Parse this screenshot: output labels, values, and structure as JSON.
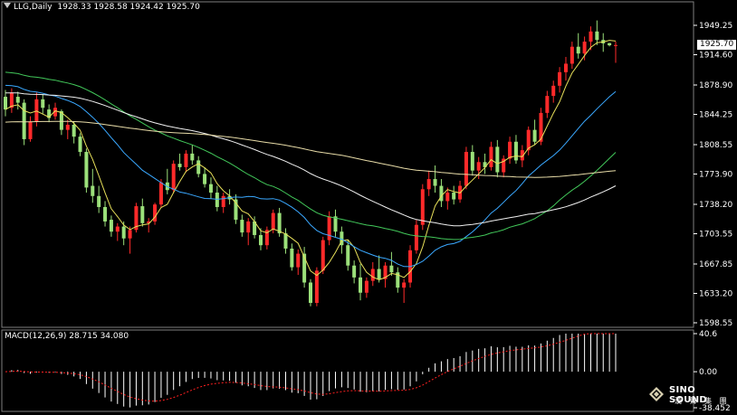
{
  "header": {
    "symbol": "LLG,Daily",
    "ohlc": "1928.33 1928.58 1924.42 1925.70"
  },
  "macd_header": "MACD(12,26,9) 28.715 34.080",
  "current_price": "1925.70",
  "logo": {
    "name": "SINO SOUND",
    "subtitle": "漢 聲 集 團"
  },
  "colors": {
    "background": "#000000",
    "bull": "#ff2a2a",
    "bear": "#9be07a",
    "ma_yellow": "#e8e05a",
    "ma_blue": "#3aa8ff",
    "ma_green": "#42c85a",
    "ma_white": "#f0f0f0",
    "ma_cream": "#e8dca8",
    "signal": "#ff2020",
    "hist": "#ffffff",
    "grid": "#808080"
  },
  "chart_data": [
    {
      "type": "candlestick",
      "title": "LLG,Daily",
      "price_axis_ticks": [
        "1949.25",
        "1914.60",
        "1878.90",
        "1844.25",
        "1808.55",
        "1773.90",
        "1738.20",
        "1703.55",
        "1667.85",
        "1633.20",
        "1598.55"
      ],
      "ylim": [
        1598.55,
        1949.25
      ],
      "candles": [
        [
          1865,
          1873,
          1842,
          1850
        ],
        [
          1852,
          1875,
          1846,
          1870
        ],
        [
          1865,
          1871,
          1850,
          1858
        ],
        [
          1858,
          1862,
          1808,
          1815
        ],
        [
          1815,
          1842,
          1812,
          1836
        ],
        [
          1836,
          1870,
          1830,
          1862
        ],
        [
          1862,
          1868,
          1845,
          1852
        ],
        [
          1850,
          1856,
          1835,
          1840
        ],
        [
          1842,
          1858,
          1838,
          1852
        ],
        [
          1848,
          1850,
          1820,
          1826
        ],
        [
          1826,
          1838,
          1815,
          1832
        ],
        [
          1832,
          1836,
          1810,
          1818
        ],
        [
          1818,
          1822,
          1795,
          1800
        ],
        [
          1800,
          1804,
          1752,
          1758
        ],
        [
          1760,
          1780,
          1740,
          1748
        ],
        [
          1748,
          1760,
          1728,
          1735
        ],
        [
          1735,
          1742,
          1712,
          1718
        ],
        [
          1720,
          1725,
          1700,
          1706
        ],
        [
          1706,
          1716,
          1695,
          1712
        ],
        [
          1712,
          1718,
          1690,
          1698
        ],
        [
          1698,
          1712,
          1680,
          1708
        ],
        [
          1708,
          1740,
          1705,
          1736
        ],
        [
          1736,
          1745,
          1712,
          1716
        ],
        [
          1716,
          1722,
          1705,
          1718
        ],
        [
          1718,
          1740,
          1714,
          1738
        ],
        [
          1738,
          1768,
          1734,
          1764
        ],
        [
          1764,
          1780,
          1750,
          1755
        ],
        [
          1755,
          1790,
          1752,
          1786
        ],
        [
          1786,
          1798,
          1778,
          1782
        ],
        [
          1782,
          1802,
          1776,
          1798
        ],
        [
          1798,
          1808,
          1785,
          1790
        ],
        [
          1790,
          1795,
          1770,
          1774
        ],
        [
          1774,
          1782,
          1758,
          1762
        ],
        [
          1762,
          1770,
          1745,
          1752
        ],
        [
          1752,
          1760,
          1730,
          1735
        ],
        [
          1735,
          1752,
          1728,
          1748
        ],
        [
          1748,
          1756,
          1738,
          1744
        ],
        [
          1744,
          1750,
          1715,
          1720
        ],
        [
          1720,
          1726,
          1700,
          1705
        ],
        [
          1705,
          1722,
          1690,
          1718
        ],
        [
          1718,
          1724,
          1698,
          1702
        ],
        [
          1702,
          1710,
          1684,
          1690
        ],
        [
          1690,
          1712,
          1685,
          1708
        ],
        [
          1708,
          1732,
          1704,
          1728
        ],
        [
          1728,
          1734,
          1700,
          1704
        ],
        [
          1704,
          1710,
          1680,
          1686
        ],
        [
          1686,
          1692,
          1660,
          1664
        ],
        [
          1664,
          1685,
          1655,
          1680
        ],
        [
          1680,
          1688,
          1640,
          1646
        ],
        [
          1646,
          1650,
          1618,
          1622
        ],
        [
          1622,
          1664,
          1618,
          1660
        ],
        [
          1660,
          1700,
          1656,
          1696
        ],
        [
          1696,
          1730,
          1690,
          1724
        ],
        [
          1724,
          1732,
          1700,
          1706
        ],
        [
          1706,
          1712,
          1680,
          1690
        ],
        [
          1690,
          1696,
          1660,
          1666
        ],
        [
          1666,
          1672,
          1645,
          1652
        ],
        [
          1652,
          1668,
          1625,
          1634
        ],
        [
          1634,
          1652,
          1628,
          1648
        ],
        [
          1648,
          1670,
          1642,
          1662
        ],
        [
          1662,
          1678,
          1646,
          1650
        ],
        [
          1650,
          1670,
          1640,
          1666
        ],
        [
          1666,
          1682,
          1654,
          1658
        ],
        [
          1658,
          1664,
          1634,
          1640
        ],
        [
          1640,
          1650,
          1622,
          1646
        ],
        [
          1646,
          1690,
          1640,
          1684
        ],
        [
          1684,
          1720,
          1680,
          1714
        ],
        [
          1714,
          1762,
          1708,
          1756
        ],
        [
          1756,
          1778,
          1748,
          1768
        ],
        [
          1768,
          1784,
          1752,
          1760
        ],
        [
          1760,
          1768,
          1735,
          1742
        ],
        [
          1742,
          1758,
          1732,
          1752
        ],
        [
          1752,
          1760,
          1738,
          1744
        ],
        [
          1744,
          1766,
          1740,
          1760
        ],
        [
          1760,
          1806,
          1756,
          1800
        ],
        [
          1800,
          1808,
          1772,
          1778
        ],
        [
          1778,
          1794,
          1768,
          1788
        ],
        [
          1788,
          1798,
          1774,
          1782
        ],
        [
          1782,
          1812,
          1778,
          1806
        ],
        [
          1806,
          1814,
          1770,
          1776
        ],
        [
          1776,
          1796,
          1770,
          1792
        ],
        [
          1792,
          1818,
          1786,
          1812
        ],
        [
          1812,
          1820,
          1786,
          1790
        ],
        [
          1790,
          1808,
          1782,
          1802
        ],
        [
          1802,
          1830,
          1796,
          1826
        ],
        [
          1826,
          1838,
          1808,
          1812
        ],
        [
          1812,
          1852,
          1808,
          1846
        ],
        [
          1846,
          1872,
          1840,
          1866
        ],
        [
          1866,
          1884,
          1858,
          1878
        ],
        [
          1878,
          1900,
          1870,
          1894
        ],
        [
          1894,
          1912,
          1884,
          1904
        ],
        [
          1904,
          1930,
          1898,
          1924
        ],
        [
          1924,
          1940,
          1910,
          1916
        ],
        [
          1916,
          1936,
          1908,
          1930
        ],
        [
          1930,
          1948,
          1920,
          1942
        ],
        [
          1942,
          1955,
          1926,
          1932
        ],
        [
          1932,
          1940,
          1918,
          1928
        ],
        [
          1928.33,
          1928.58,
          1924.42,
          1925.7
        ],
        [
          1926,
          1930,
          1905,
          1926
        ]
      ]
    },
    {
      "type": "bar",
      "title": "MACD(12,26,9)",
      "legend": [
        "28.715",
        "34.080"
      ],
      "axis_ticks": [
        "40.6",
        "0.00",
        "-38.452"
      ],
      "ylim": [
        -38.452,
        40.6
      ]
    }
  ]
}
